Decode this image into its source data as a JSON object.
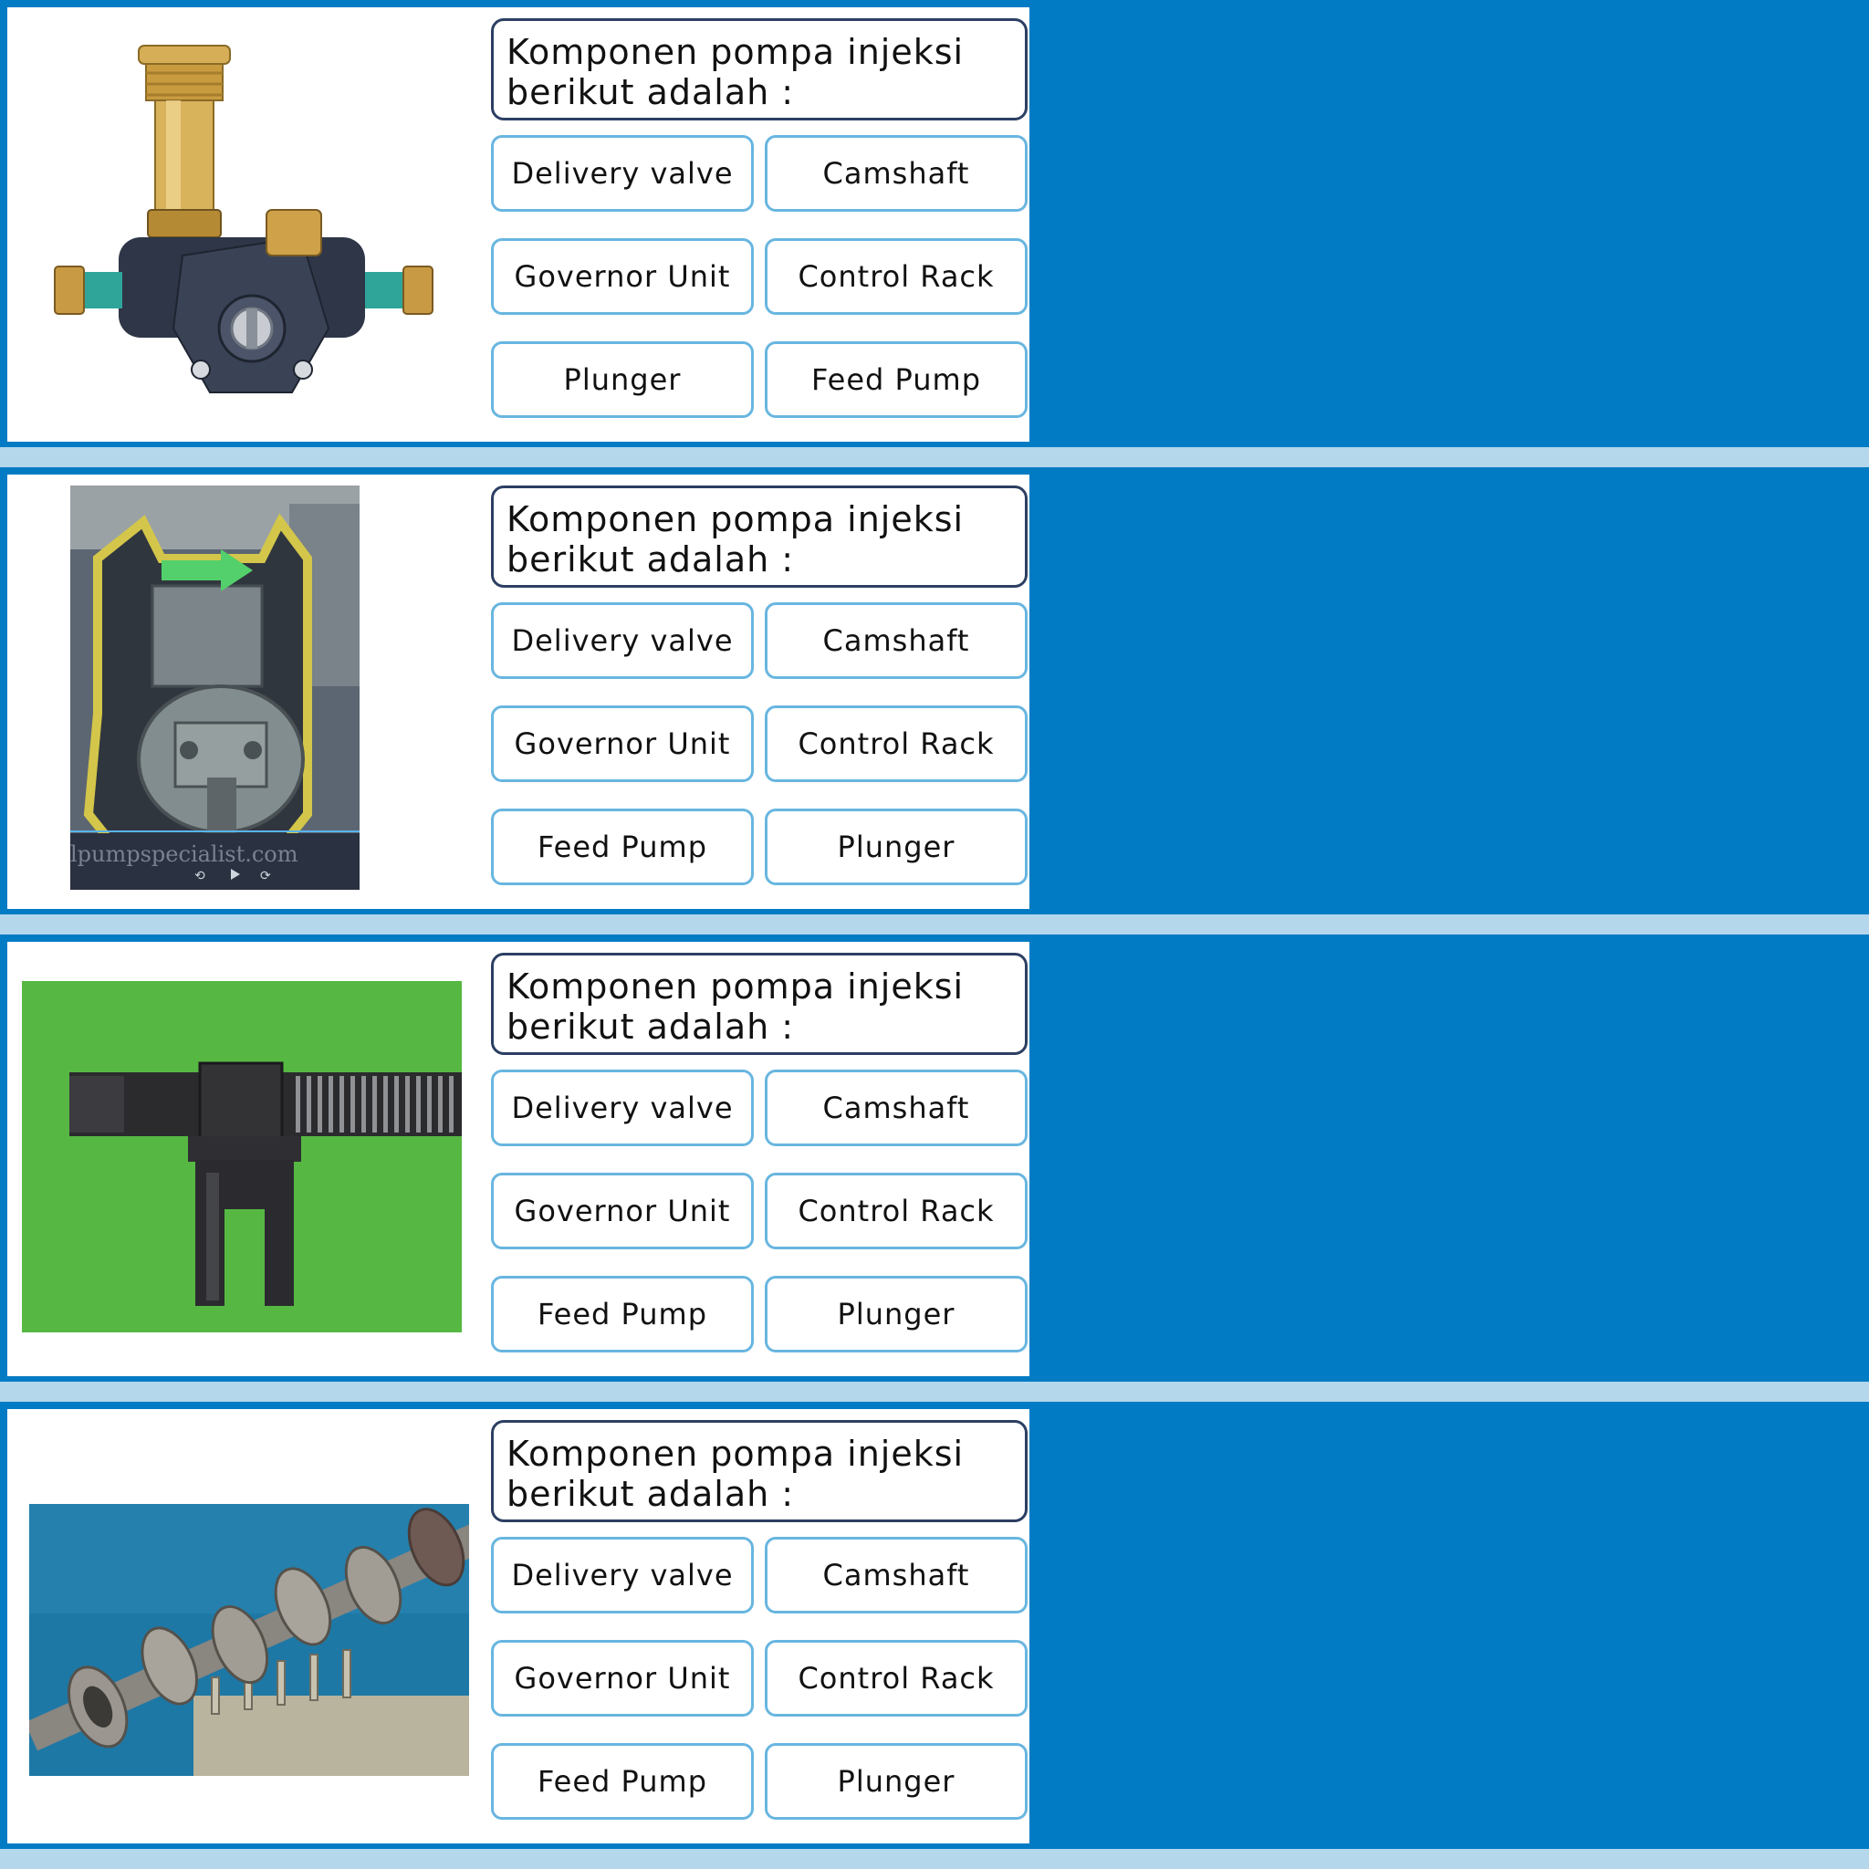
{
  "colors": {
    "background_blue": "#017bc3",
    "divider_light_blue": "#b4d7ec",
    "question_border": "#2c3f63",
    "option_border": "#68b6e0"
  },
  "slides": [
    {
      "image": "fuel-feed-pump-photo",
      "question": "Komponen pompa injeksi berikut adalah :",
      "options": [
        "Delivery valve",
        "Camshaft",
        "Governor Unit",
        "Control Rack",
        "Plunger",
        "Feed Pump"
      ]
    },
    {
      "image": "governor-unit-video-still",
      "question": "Komponen pompa injeksi berikut adalah :",
      "options": [
        "Delivery valve",
        "Camshaft",
        "Governor Unit",
        "Control Rack",
        "Feed Pump",
        "Plunger"
      ],
      "image_watermark": "lpumpspecialist.com"
    },
    {
      "image": "control-rack-photo",
      "question": "Komponen pompa injeksi berikut adalah :",
      "options": [
        "Delivery valve",
        "Camshaft",
        "Governor Unit",
        "Control Rack",
        "Feed Pump",
        "Plunger"
      ]
    },
    {
      "image": "camshaft-photo",
      "question": "Komponen pompa injeksi berikut adalah :",
      "options": [
        "Delivery valve",
        "Camshaft",
        "Governor Unit",
        "Control Rack",
        "Feed Pump",
        "Plunger"
      ]
    }
  ]
}
